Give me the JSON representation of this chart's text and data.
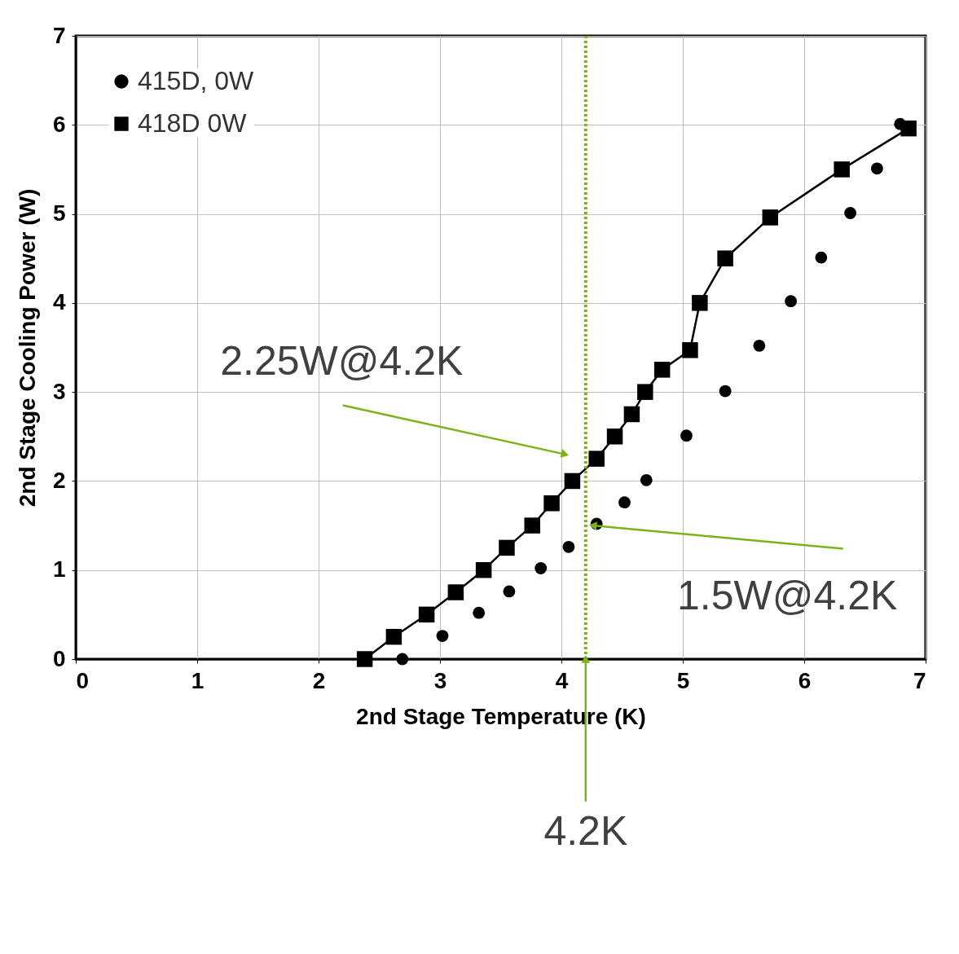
{
  "chart_data": {
    "type": "scatter",
    "xlabel": "2nd Stage Temperature (K)",
    "ylabel": "2nd Stage Cooling Power (W)",
    "series": [
      {
        "name": "415D, 0W",
        "type": "scatter",
        "marker": "circle",
        "color": "#000000",
        "x": [
          2.69,
          3.02,
          3.32,
          3.57,
          3.83,
          4.06,
          4.29,
          4.52,
          4.7,
          5.03,
          5.35,
          5.63,
          5.89,
          6.14,
          6.38,
          6.6,
          6.79
        ],
        "values": [
          0,
          0.26,
          0.52,
          0.76,
          1.02,
          1.26,
          1.52,
          1.76,
          2.01,
          2.51,
          3.01,
          3.52,
          4.02,
          4.51,
          5.01,
          5.51,
          6.01
        ]
      },
      {
        "name": "418D 0W",
        "type": "line",
        "marker": "square",
        "color": "#000000",
        "x": [
          2.38,
          2.62,
          2.89,
          3.13,
          3.36,
          3.55,
          3.76,
          3.92,
          4.09,
          4.29,
          4.44,
          4.58,
          4.69,
          4.83,
          5.06,
          5.14,
          5.35,
          5.72,
          6.31,
          6.86
        ],
        "values": [
          0,
          0.25,
          0.5,
          0.75,
          1.0,
          1.25,
          1.5,
          1.75,
          2.0,
          2.25,
          2.5,
          2.75,
          3.0,
          3.25,
          3.47,
          4.0,
          4.5,
          4.96,
          5.5,
          5.96
        ]
      }
    ],
    "xlim": [
      0,
      7
    ],
    "ylim": [
      0,
      7
    ],
    "xticks": [
      0,
      1,
      2,
      3,
      4,
      5,
      6,
      7
    ],
    "yticks": [
      0,
      1,
      2,
      3,
      4,
      5,
      6,
      7
    ],
    "grid": true,
    "legend": "top left",
    "ref_lines": [
      {
        "axis": "x",
        "value": 4.2,
        "color": "#7ab317",
        "line_style": "dotted"
      }
    ],
    "annotations": [
      {
        "text": "2.25W@4.2K",
        "x": 4.03,
        "y": 2.3
      },
      {
        "text": "1.5W@4.2K",
        "x": 4.26,
        "y": 1.5
      },
      {
        "text": "4.2K",
        "x": 4.2,
        "y": 0
      }
    ]
  }
}
